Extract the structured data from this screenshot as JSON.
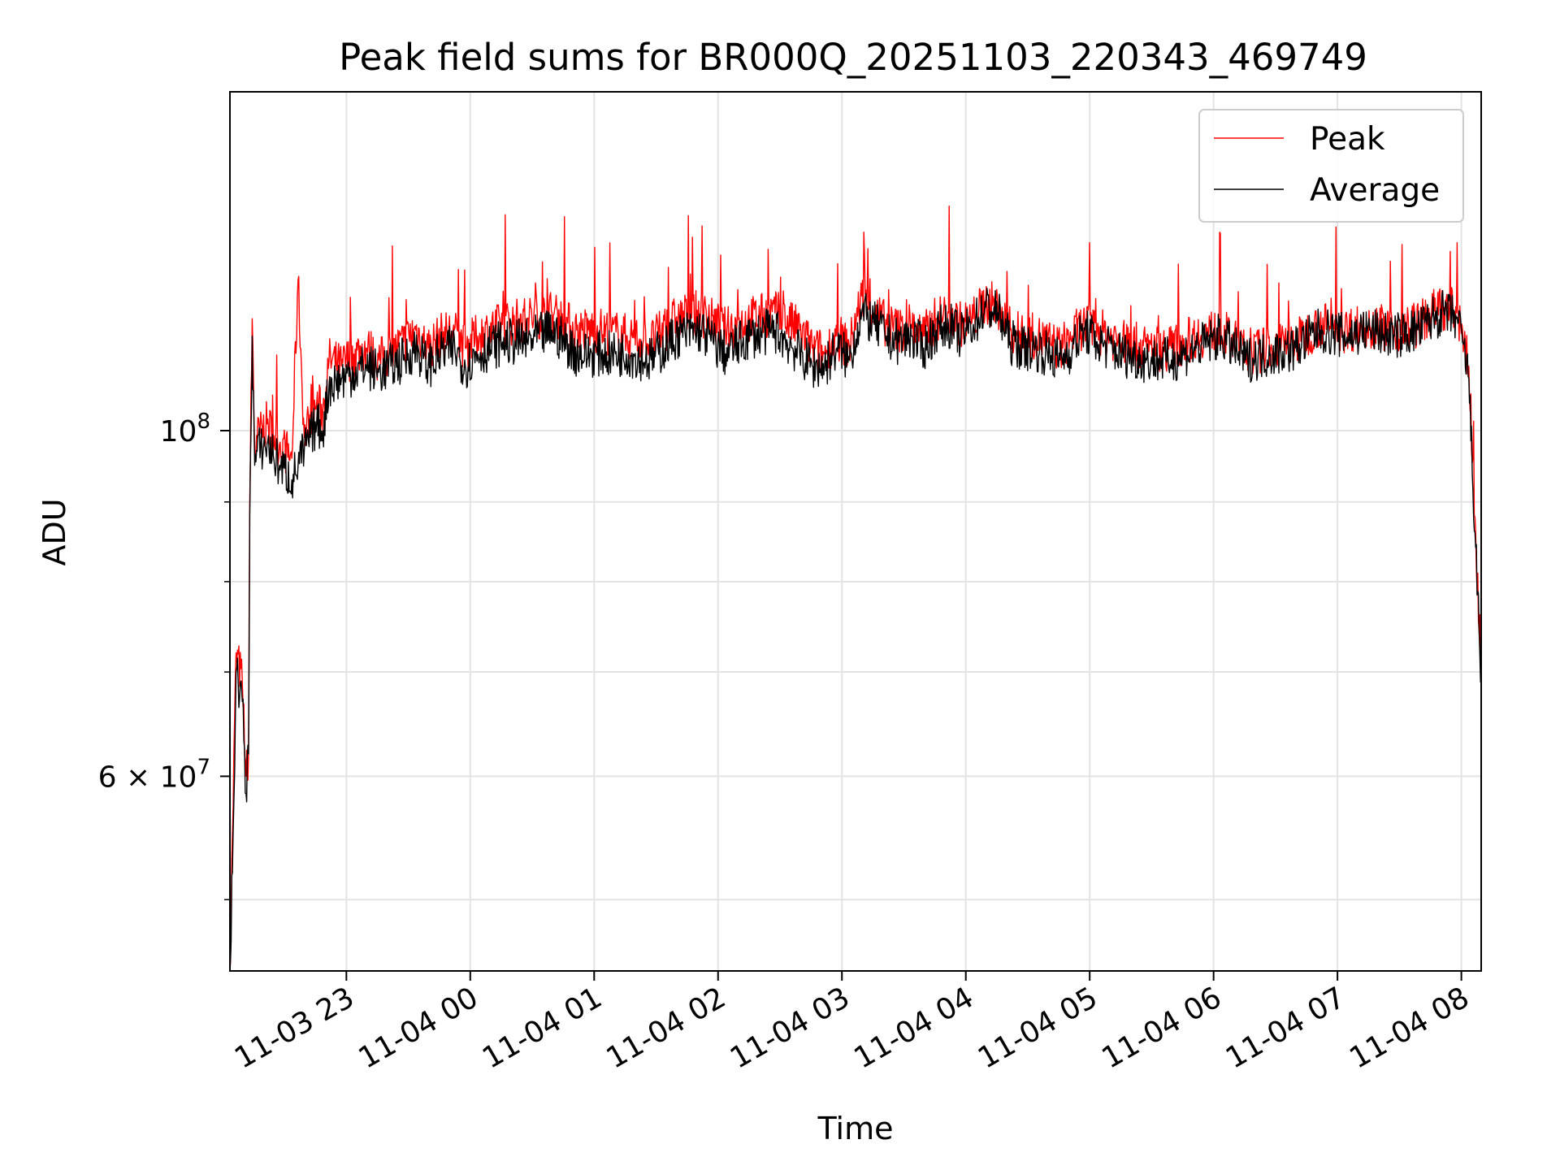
{
  "chart_data": {
    "type": "line",
    "title": "Peak field sums for BR000Q_20251103_220343_469749",
    "xlabel": "Time",
    "ylabel": "ADU",
    "yscale": "log",
    "grid": true,
    "legend_position": "top-right",
    "x_unit": "hours since 2025-11-03 22:03:43",
    "xlim": [
      0,
      10.1
    ],
    "ylim": [
      45000000,
      165000000
    ],
    "x_ticks": [
      {
        "value": 0.94,
        "label": "11-03 23"
      },
      {
        "value": 1.94,
        "label": "11-04 00"
      },
      {
        "value": 2.94,
        "label": "11-04 01"
      },
      {
        "value": 3.94,
        "label": "11-04 02"
      },
      {
        "value": 4.94,
        "label": "11-04 03"
      },
      {
        "value": 5.94,
        "label": "11-04 04"
      },
      {
        "value": 6.94,
        "label": "11-04 05"
      },
      {
        "value": 7.94,
        "label": "11-04 06"
      },
      {
        "value": 8.94,
        "label": "11-04 07"
      },
      {
        "value": 9.94,
        "label": "11-04 08"
      }
    ],
    "y_major_ticks": [
      {
        "value": 100000000,
        "base": "10",
        "exp": "8",
        "coef": ""
      },
      {
        "value": 60000000,
        "base": "10",
        "exp": "7",
        "coef": "6"
      }
    ],
    "y_minor_ticks": [
      50000000,
      70000000,
      80000000,
      90000000
    ],
    "series": [
      {
        "name": "Peak",
        "color": "#ff0000",
        "x": [
          0,
          0.02,
          0.05,
          0.1,
          0.13,
          0.15,
          0.16,
          0.18,
          0.2,
          0.22,
          0.3,
          0.4,
          0.5,
          0.55,
          0.6,
          0.65,
          0.7,
          0.75,
          0.8,
          0.9,
          1.0,
          1.1,
          1.2,
          1.3,
          1.4,
          1.5,
          1.6,
          1.7,
          1.8,
          1.9,
          2.0,
          2.2,
          2.4,
          2.6,
          2.8,
          3.0,
          3.2,
          3.4,
          3.6,
          3.8,
          4.0,
          4.2,
          4.4,
          4.6,
          4.7,
          4.8,
          4.9,
          5.0,
          5.1,
          5.2,
          5.3,
          5.4,
          5.5,
          5.6,
          5.7,
          5.8,
          5.9,
          6.0,
          6.1,
          6.2,
          6.3,
          6.4,
          6.5,
          6.6,
          6.7,
          6.8,
          6.9,
          7.0,
          7.2,
          7.4,
          7.6,
          7.8,
          8.0,
          8.2,
          8.4,
          8.6,
          8.8,
          9.0,
          9.2,
          9.4,
          9.6,
          9.7,
          9.8,
          9.9,
          9.95,
          10.0,
          10.05,
          10.1
        ],
        "values": [
          45000000,
          55000000,
          72000000,
          69000000,
          60000000,
          62000000,
          90000000,
          118000000,
          97000000,
          99000000,
          101000000,
          98000000,
          96000000,
          125000000,
          99000000,
          102000000,
          104000000,
          103000000,
          111000000,
          110000000,
          112000000,
          113000000,
          111000000,
          112000000,
          114000000,
          116000000,
          113000000,
          115000000,
          116000000,
          113000000,
          115000000,
          117000000,
          118000000,
          119000000,
          116000000,
          116000000,
          115000000,
          114000000,
          118000000,
          119000000,
          116000000,
          118000000,
          119000000,
          116000000,
          113000000,
          112000000,
          115000000,
          113000000,
          122000000,
          119000000,
          117000000,
          116000000,
          117000000,
          115000000,
          118000000,
          119000000,
          117000000,
          118000000,
          121000000,
          120000000,
          116000000,
          115000000,
          115000000,
          114000000,
          113000000,
          115000000,
          117000000,
          116000000,
          114000000,
          113000000,
          113000000,
          115000000,
          116000000,
          112000000,
          113000000,
          114000000,
          117000000,
          116000000,
          117000000,
          116000000,
          117000000,
          119000000,
          120000000,
          119000000,
          116000000,
          110000000,
          88000000,
          70000000
        ]
      },
      {
        "name": "Average",
        "color": "#000000",
        "x": [
          0,
          0.02,
          0.05,
          0.1,
          0.13,
          0.15,
          0.16,
          0.18,
          0.2,
          0.22,
          0.3,
          0.4,
          0.5,
          0.55,
          0.6,
          0.65,
          0.7,
          0.75,
          0.8,
          0.9,
          1.0,
          1.1,
          1.2,
          1.3,
          1.4,
          1.5,
          1.6,
          1.7,
          1.8,
          1.9,
          2.0,
          2.2,
          2.4,
          2.6,
          2.8,
          3.0,
          3.2,
          3.4,
          3.6,
          3.8,
          4.0,
          4.2,
          4.4,
          4.6,
          4.7,
          4.8,
          4.9,
          5.0,
          5.1,
          5.2,
          5.3,
          5.4,
          5.5,
          5.6,
          5.7,
          5.8,
          5.9,
          6.0,
          6.1,
          6.2,
          6.3,
          6.4,
          6.5,
          6.6,
          6.7,
          6.8,
          6.9,
          7.0,
          7.2,
          7.4,
          7.6,
          7.8,
          8.0,
          8.2,
          8.4,
          8.6,
          8.8,
          9.0,
          9.2,
          9.4,
          9.6,
          9.7,
          9.8,
          9.9,
          9.95,
          10.0,
          10.05,
          10.1
        ],
        "values": [
          45000000,
          52000000,
          70000000,
          67000000,
          58500000,
          62000000,
          88000000,
          115000000,
          95000000,
          97000000,
          98000000,
          95000000,
          93000000,
          95000000,
          97000000,
          99000000,
          101000000,
          100000000,
          107000000,
          108000000,
          109000000,
          110000000,
          109000000,
          110000000,
          111000000,
          113000000,
          110000000,
          112000000,
          113000000,
          110000000,
          112000000,
          114000000,
          114000000,
          116000000,
          112000000,
          112000000,
          112000000,
          111000000,
          115000000,
          116000000,
          112000000,
          115000000,
          116000000,
          112000000,
          110000000,
          110000000,
          113000000,
          111000000,
          119000000,
          117000000,
          115000000,
          114000000,
          115000000,
          113000000,
          116000000,
          117000000,
          115000000,
          117000000,
          120000000,
          119000000,
          114000000,
          113000000,
          113000000,
          112000000,
          111000000,
          113000000,
          116000000,
          114000000,
          112000000,
          111000000,
          111000000,
          113000000,
          115000000,
          111000000,
          112000000,
          113000000,
          116000000,
          115000000,
          116000000,
          115000000,
          116000000,
          118000000,
          119000000,
          118000000,
          114000000,
          108000000,
          86000000,
          69000000
        ]
      }
    ]
  }
}
